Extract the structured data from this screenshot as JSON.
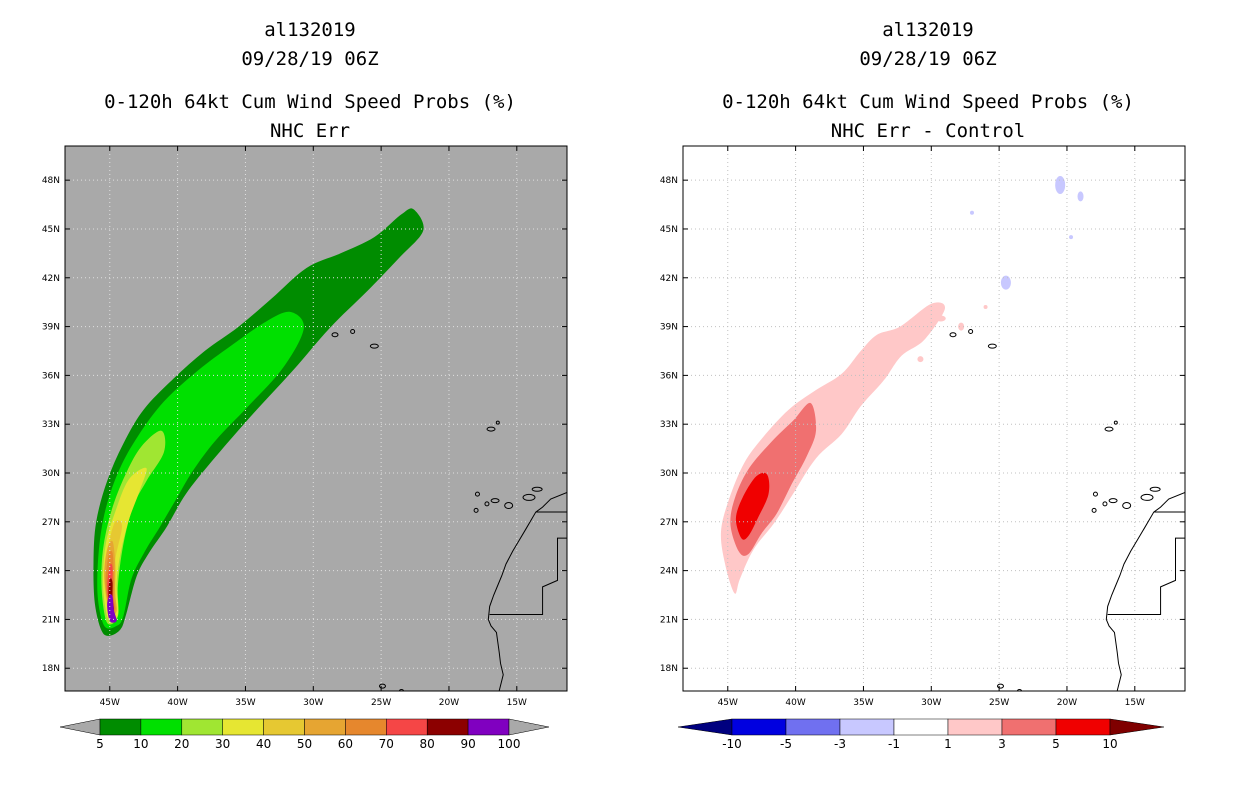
{
  "chart_data": [
    {
      "type": "heatmap",
      "storm_id": "al132019",
      "datetime": "09/28/19 06Z",
      "title": "0-120h 64kt Cum Wind Speed Probs (%)",
      "subtitle": "NHC Err",
      "x_ticks": [
        "45W",
        "40W",
        "35W",
        "30W",
        "25W",
        "20W",
        "15W"
      ],
      "x_tick_values": [
        -45,
        -40,
        -35,
        -30,
        -25,
        -20,
        -15
      ],
      "y_ticks": [
        "18N",
        "21N",
        "24N",
        "27N",
        "30N",
        "33N",
        "36N",
        "39N",
        "42N",
        "45N",
        "48N"
      ],
      "y_tick_values": [
        18,
        21,
        24,
        27,
        30,
        33,
        36,
        39,
        42,
        45,
        48
      ],
      "xlim": [
        -48.3,
        -11.3
      ],
      "ylim": [
        16.6,
        50.1
      ],
      "background_color": "#a9a9a9",
      "colorbar": {
        "labels": [
          "5",
          "10",
          "20",
          "30",
          "40",
          "50",
          "60",
          "70",
          "80",
          "90",
          "100"
        ],
        "colors": [
          "#008c00",
          "#00e000",
          "#a0e632",
          "#e6e632",
          "#e6c832",
          "#e6a532",
          "#e6872d",
          "#f54646",
          "#8c0000",
          "#8000c0"
        ],
        "end_arrow_color": "#a9a9a9"
      },
      "contours": [
        {
          "level": 5,
          "color": "#008c00",
          "points": [
            [
              -45.6,
              20.3
            ],
            [
              -46.1,
              22
            ],
            [
              -46.2,
              24.5
            ],
            [
              -46.0,
              27
            ],
            [
              -45.2,
              29.5
            ],
            [
              -44.0,
              31.8
            ],
            [
              -42.5,
              33.9
            ],
            [
              -40.3,
              35.8
            ],
            [
              -38.0,
              37.5
            ],
            [
              -35.5,
              39.0
            ],
            [
              -33.1,
              40.7
            ],
            [
              -30.5,
              42.6
            ],
            [
              -28.0,
              43.5
            ],
            [
              -25.5,
              44.5
            ],
            [
              -23.5,
              45.9
            ],
            [
              -22.6,
              46.2
            ],
            [
              -21.9,
              44.9
            ],
            [
              -23.7,
              43.2
            ],
            [
              -26.0,
              41.2
            ],
            [
              -28.8,
              38.9
            ],
            [
              -31.5,
              36.3
            ],
            [
              -34.7,
              33.4
            ],
            [
              -37.5,
              30.7
            ],
            [
              -39.4,
              28.7
            ],
            [
              -40.8,
              26.7
            ],
            [
              -42.1,
              25.1
            ],
            [
              -43.0,
              23.7
            ],
            [
              -43.8,
              21.3
            ],
            [
              -44.2,
              20.4
            ],
            [
              -45.0,
              20.0
            ]
          ]
        },
        {
          "level": 10,
          "color": "#00e000",
          "points": [
            [
              -45.4,
              20.6
            ],
            [
              -45.9,
              22.5
            ],
            [
              -45.8,
              25.3
            ],
            [
              -45.3,
              27.8
            ],
            [
              -44.3,
              30.2
            ],
            [
              -42.9,
              32.3
            ],
            [
              -41.0,
              34.4
            ],
            [
              -38.5,
              36.3
            ],
            [
              -36.1,
              37.8
            ],
            [
              -33.5,
              39.3
            ],
            [
              -31.7,
              39.9
            ],
            [
              -30.7,
              38.9
            ],
            [
              -32.2,
              36.5
            ],
            [
              -34.8,
              34.1
            ],
            [
              -37.2,
              32.0
            ],
            [
              -38.9,
              30.1
            ],
            [
              -40.1,
              28.4
            ],
            [
              -41.3,
              26.7
            ],
            [
              -42.4,
              25.2
            ],
            [
              -43.4,
              23.5
            ],
            [
              -44.0,
              21.2
            ],
            [
              -44.5,
              20.6
            ]
          ]
        },
        {
          "level": 20,
          "color": "#a0e632",
          "points": [
            [
              -45.2,
              20.8
            ],
            [
              -45.6,
              22.9
            ],
            [
              -45.5,
              25.3
            ],
            [
              -44.9,
              27.6
            ],
            [
              -43.9,
              29.8
            ],
            [
              -42.7,
              31.6
            ],
            [
              -41.2,
              32.6
            ],
            [
              -41.0,
              31.3
            ],
            [
              -42.3,
              29.5
            ],
            [
              -43.3,
              27.9
            ],
            [
              -44.0,
              25.6
            ],
            [
              -44.4,
              23.1
            ],
            [
              -44.4,
              21.2
            ]
          ]
        },
        {
          "level": 30,
          "color": "#e6e632",
          "points": [
            [
              -45.1,
              21.0
            ],
            [
              -45.5,
              23.1
            ],
            [
              -45.3,
              25.6
            ],
            [
              -44.6,
              27.6
            ],
            [
              -43.6,
              29.6
            ],
            [
              -42.3,
              30.3
            ],
            [
              -42.8,
              28.9
            ],
            [
              -43.6,
              27.1
            ],
            [
              -44.2,
              25.1
            ],
            [
              -44.5,
              23.2
            ],
            [
              -44.4,
              21.3
            ]
          ]
        },
        {
          "level": 40,
          "color": "#e6c832",
          "points": [
            [
              -45.0,
              21.3
            ],
            [
              -45.4,
              23.4
            ],
            [
              -45.1,
              25.5
            ],
            [
              -44.6,
              27.0
            ],
            [
              -44.1,
              26.7
            ],
            [
              -44.6,
              24.6
            ],
            [
              -44.6,
              22.6
            ],
            [
              -44.5,
              21.5
            ]
          ]
        },
        {
          "level": 50,
          "color": "#e6a532",
          "points": [
            [
              -45.0,
              21.4
            ],
            [
              -45.4,
              23.6
            ],
            [
              -45.2,
              25.3
            ],
            [
              -44.8,
              25.8
            ],
            [
              -44.6,
              24.5
            ],
            [
              -44.6,
              22.6
            ],
            [
              -44.5,
              21.5
            ]
          ]
        },
        {
          "level": 60,
          "color": "#e6872d",
          "points": [
            [
              -45.0,
              21.5
            ],
            [
              -45.3,
              23.2
            ],
            [
              -45.1,
              24.9
            ],
            [
              -44.8,
              25.1
            ],
            [
              -44.7,
              23.6
            ],
            [
              -44.7,
              22.3
            ],
            [
              -44.6,
              21.6
            ]
          ]
        },
        {
          "level": 70,
          "color": "#f54646",
          "points": [
            [
              -45.0,
              21.5
            ],
            [
              -45.2,
              23.0
            ],
            [
              -45.0,
              24.3
            ],
            [
              -44.8,
              24.2
            ],
            [
              -44.8,
              22.8
            ],
            [
              -44.7,
              21.6
            ]
          ]
        },
        {
          "level": 80,
          "color": "#8c0000",
          "points": [
            [
              -45.0,
              21.6
            ],
            [
              -45.1,
              22.6
            ],
            [
              -45.0,
              23.5
            ],
            [
              -44.8,
              23.3
            ],
            [
              -44.8,
              22.3
            ],
            [
              -44.7,
              21.6
            ]
          ]
        },
        {
          "level": 90,
          "color": "#8000c0",
          "points": [
            [
              -45.0,
              20.9
            ],
            [
              -45.2,
              21.9
            ],
            [
              -45.0,
              22.5
            ],
            [
              -44.8,
              22.4
            ],
            [
              -44.7,
              21.6
            ],
            [
              -44.5,
              20.9
            ]
          ]
        }
      ]
    },
    {
      "type": "heatmap",
      "storm_id": "al132019",
      "datetime": "09/28/19 06Z",
      "title": "0-120h 64kt Cum Wind Speed Probs (%)",
      "subtitle": "NHC Err - Control",
      "x_ticks": [
        "45W",
        "40W",
        "35W",
        "30W",
        "25W",
        "20W",
        "15W"
      ],
      "x_tick_values": [
        -45,
        -40,
        -35,
        -30,
        -25,
        -20,
        -15
      ],
      "y_ticks": [
        "18N",
        "21N",
        "24N",
        "27N",
        "30N",
        "33N",
        "36N",
        "39N",
        "42N",
        "45N",
        "48N"
      ],
      "y_tick_values": [
        18,
        21,
        24,
        27,
        30,
        33,
        36,
        39,
        42,
        45,
        48
      ],
      "xlim": [
        -48.3,
        -11.3
      ],
      "ylim": [
        16.6,
        50.1
      ],
      "background_color": "#ffffff",
      "colorbar": {
        "labels": [
          "-10",
          "-5",
          "-3",
          "-1",
          "1",
          "3",
          "5",
          "10"
        ],
        "colors": [
          "#0000e0",
          "#7070f0",
          "#c8c8ff",
          "#ffffff",
          "#ffc8c8",
          "#f07070",
          "#f00000"
        ],
        "left_arrow_color": "#00007f",
        "right_arrow_color": "#7f0000"
      },
      "contours": [
        {
          "level": 1,
          "color": "#ffc8c8",
          "points": [
            [
              -44.5,
              22.6
            ],
            [
              -45.2,
              24.4
            ],
            [
              -45.5,
              26.4
            ],
            [
              -44.9,
              28.4
            ],
            [
              -43.8,
              30.6
            ],
            [
              -42.4,
              32.2
            ],
            [
              -40.5,
              33.9
            ],
            [
              -38.5,
              35.1
            ],
            [
              -36.6,
              36.1
            ],
            [
              -35.2,
              37.5
            ],
            [
              -34.0,
              38.5
            ],
            [
              -32.3,
              39.0
            ],
            [
              -30.0,
              40.4
            ],
            [
              -29.0,
              40.1
            ],
            [
              -30.5,
              38.2
            ],
            [
              -32.2,
              37.2
            ],
            [
              -33.5,
              35.7
            ],
            [
              -35.2,
              34.1
            ],
            [
              -36.6,
              32.4
            ],
            [
              -38.5,
              30.9
            ],
            [
              -40.2,
              28.7
            ],
            [
              -41.6,
              26.9
            ],
            [
              -43.1,
              25.3
            ],
            [
              -44.1,
              23.5
            ]
          ]
        },
        {
          "level": 3,
          "color": "#f07070",
          "points": [
            [
              -44.2,
              25.2
            ],
            [
              -44.8,
              26.8
            ],
            [
              -44.5,
              28.4
            ],
            [
              -43.5,
              30.2
            ],
            [
              -41.8,
              31.9
            ],
            [
              -40.2,
              33.2
            ],
            [
              -38.9,
              34.3
            ],
            [
              -38.5,
              32.6
            ],
            [
              -39.2,
              31.0
            ],
            [
              -40.3,
              29.3
            ],
            [
              -41.4,
              27.5
            ],
            [
              -42.5,
              26.3
            ],
            [
              -43.5,
              25.0
            ]
          ]
        },
        {
          "level": 5,
          "color": "#f00000",
          "points": [
            [
              -44.0,
              26.0
            ],
            [
              -44.4,
              27.2
            ],
            [
              -43.9,
              28.5
            ],
            [
              -42.9,
              29.8
            ],
            [
              -42.1,
              29.9
            ],
            [
              -42.0,
              28.7
            ],
            [
              -42.8,
              27.2
            ],
            [
              -43.5,
              26.1
            ]
          ]
        }
      ]
    }
  ]
}
